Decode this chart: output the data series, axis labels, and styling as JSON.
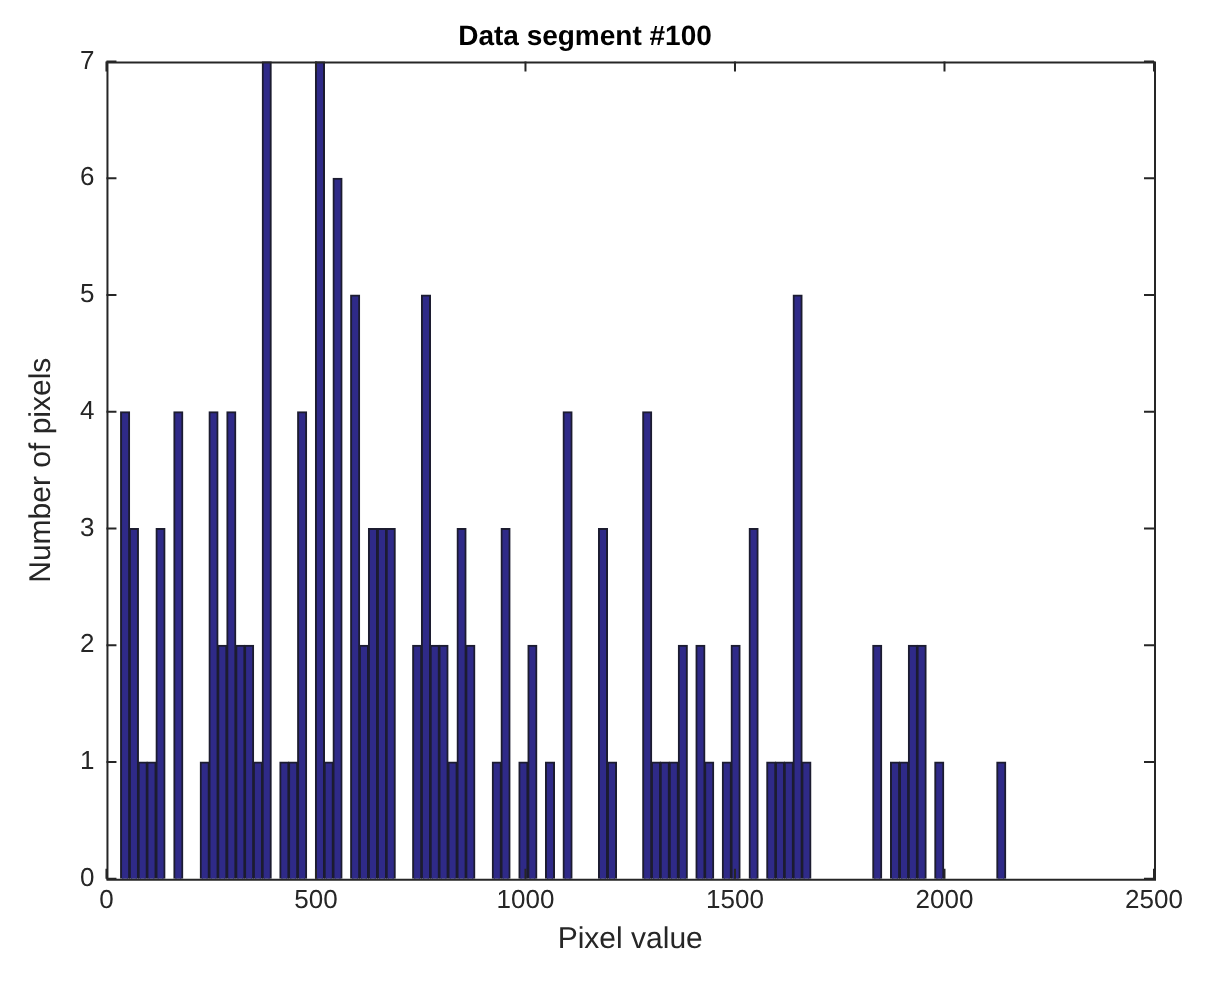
{
  "chart_data": {
    "type": "histogram",
    "title": "Data segment #100",
    "xlabel": "Pixel value",
    "ylabel": "Number of pixels",
    "color": "#2f2a88",
    "bins": [
      34,
      55,
      76,
      97,
      118,
      140,
      161,
      182,
      203,
      224,
      245,
      266,
      287,
      309,
      330,
      351,
      372,
      393,
      414,
      435,
      456,
      478,
      499,
      520,
      541,
      562,
      583,
      604,
      625,
      647,
      668,
      689,
      710,
      731,
      752,
      773,
      794,
      815,
      837,
      858,
      879,
      900,
      921,
      942,
      963,
      984,
      1006,
      1027,
      1048,
      1069,
      1090,
      1111,
      1132,
      1153,
      1174,
      1196,
      1217,
      1238,
      1259,
      1280,
      1301,
      1322,
      1343,
      1365,
      1386,
      1407,
      1428,
      1449,
      1470,
      1491,
      1512,
      1534,
      1555,
      1576,
      1597,
      1618,
      1639,
      1660,
      1681,
      1702,
      1724,
      1745,
      1766,
      1787,
      1808,
      1829,
      1850,
      1871,
      1893,
      1914,
      1935,
      1956,
      1977,
      1998,
      2019,
      2040,
      2062,
      2083,
      2104,
      2125,
      2146
    ],
    "values": [
      4,
      3,
      1,
      1,
      3,
      0,
      4,
      0,
      0,
      1,
      4,
      2,
      4,
      2,
      2,
      1,
      7,
      0,
      1,
      1,
      4,
      0,
      7,
      1,
      6,
      0,
      5,
      2,
      3,
      3,
      3,
      0,
      0,
      2,
      5,
      2,
      2,
      1,
      3,
      2,
      0,
      0,
      1,
      3,
      0,
      1,
      2,
      0,
      1,
      0,
      4,
      0,
      0,
      0,
      3,
      1,
      0,
      0,
      0,
      4,
      1,
      1,
      1,
      2,
      0,
      2,
      1,
      0,
      1,
      2,
      0,
      3,
      0,
      1,
      1,
      1,
      5,
      1,
      0,
      0,
      0,
      0,
      0,
      0,
      0,
      2,
      0,
      1,
      1,
      2,
      2,
      0,
      1,
      0,
      0,
      0,
      0,
      0,
      0,
      1
    ],
    "xlim": [
      0,
      2500
    ],
    "xticks": [
      0,
      500,
      1000,
      1500,
      2000,
      2500
    ],
    "ylim": [
      0,
      7
    ],
    "yticks": [
      0,
      1,
      2,
      3,
      4,
      5,
      6,
      7
    ],
    "grid": false
  }
}
